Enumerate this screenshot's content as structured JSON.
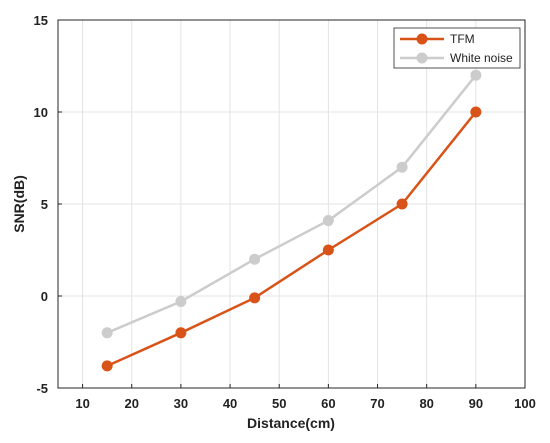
{
  "chart_data": {
    "type": "line",
    "xlabel": "Distance(cm)",
    "ylabel": "SNR(dB)",
    "xlim": [
      5,
      100
    ],
    "ylim": [
      -5,
      15
    ],
    "xticks": [
      10,
      20,
      30,
      40,
      50,
      60,
      70,
      80,
      90,
      100
    ],
    "yticks": [
      -5,
      0,
      5,
      10,
      15
    ],
    "grid": true,
    "legend_position": "top-right",
    "x": [
      15,
      30,
      45,
      60,
      75,
      90
    ],
    "series": [
      {
        "name": "TFM",
        "color": "#d95319",
        "values": [
          -3.8,
          -2.0,
          -0.1,
          2.5,
          5.0,
          10.0
        ]
      },
      {
        "name": "White noise",
        "color": "#cccccc",
        "values": [
          -2.0,
          -0.3,
          2.0,
          4.1,
          7.0,
          12.0
        ]
      }
    ]
  }
}
